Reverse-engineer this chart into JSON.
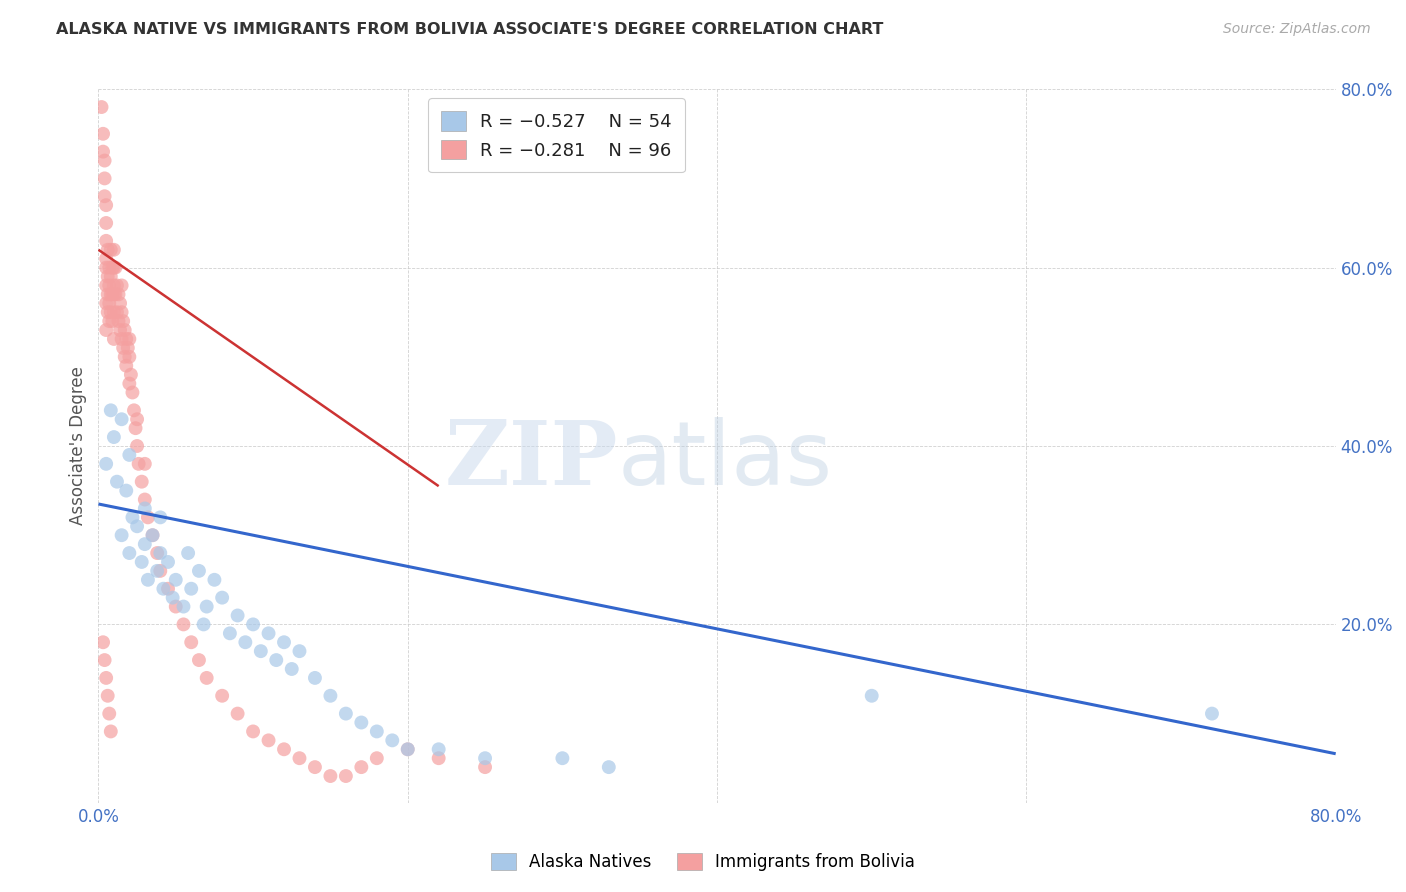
{
  "title": "ALASKA NATIVE VS IMMIGRANTS FROM BOLIVIA ASSOCIATE'S DEGREE CORRELATION CHART",
  "source": "Source: ZipAtlas.com",
  "ylabel": "Associate's Degree",
  "xlim": [
    0.0,
    0.8
  ],
  "ylim": [
    0.0,
    0.8
  ],
  "blue_color": "#a8c8e8",
  "pink_color": "#f4a0a0",
  "blue_line_color": "#3366cc",
  "pink_line_color": "#cc3333",
  "blue_line_x0": 0.0,
  "blue_line_y0": 0.335,
  "blue_line_x1": 0.8,
  "blue_line_y1": 0.055,
  "pink_line_x0": 0.0,
  "pink_line_y0": 0.62,
  "pink_line_x1": 0.22,
  "pink_line_y1": 0.355,
  "watermark_zip": "ZIP",
  "watermark_atlas": "atlas",
  "background_color": "#ffffff",
  "blue_scatter_x": [
    0.005,
    0.008,
    0.01,
    0.012,
    0.015,
    0.015,
    0.018,
    0.02,
    0.02,
    0.022,
    0.025,
    0.028,
    0.03,
    0.03,
    0.032,
    0.035,
    0.038,
    0.04,
    0.04,
    0.042,
    0.045,
    0.048,
    0.05,
    0.055,
    0.058,
    0.06,
    0.065,
    0.068,
    0.07,
    0.075,
    0.08,
    0.085,
    0.09,
    0.095,
    0.1,
    0.105,
    0.11,
    0.115,
    0.12,
    0.125,
    0.13,
    0.14,
    0.15,
    0.16,
    0.17,
    0.18,
    0.19,
    0.2,
    0.22,
    0.25,
    0.3,
    0.33,
    0.5,
    0.72
  ],
  "blue_scatter_y": [
    0.38,
    0.44,
    0.41,
    0.36,
    0.43,
    0.3,
    0.35,
    0.39,
    0.28,
    0.32,
    0.31,
    0.27,
    0.29,
    0.33,
    0.25,
    0.3,
    0.26,
    0.28,
    0.32,
    0.24,
    0.27,
    0.23,
    0.25,
    0.22,
    0.28,
    0.24,
    0.26,
    0.2,
    0.22,
    0.25,
    0.23,
    0.19,
    0.21,
    0.18,
    0.2,
    0.17,
    0.19,
    0.16,
    0.18,
    0.15,
    0.17,
    0.14,
    0.12,
    0.1,
    0.09,
    0.08,
    0.07,
    0.06,
    0.06,
    0.05,
    0.05,
    0.04,
    0.12,
    0.1
  ],
  "pink_scatter_x": [
    0.002,
    0.003,
    0.003,
    0.004,
    0.004,
    0.004,
    0.005,
    0.005,
    0.005,
    0.005,
    0.005,
    0.005,
    0.005,
    0.005,
    0.006,
    0.006,
    0.006,
    0.006,
    0.007,
    0.007,
    0.007,
    0.007,
    0.008,
    0.008,
    0.008,
    0.008,
    0.009,
    0.009,
    0.009,
    0.01,
    0.01,
    0.01,
    0.01,
    0.01,
    0.01,
    0.011,
    0.011,
    0.012,
    0.012,
    0.013,
    0.013,
    0.014,
    0.014,
    0.015,
    0.015,
    0.015,
    0.016,
    0.016,
    0.017,
    0.017,
    0.018,
    0.018,
    0.019,
    0.02,
    0.02,
    0.02,
    0.021,
    0.022,
    0.023,
    0.024,
    0.025,
    0.025,
    0.026,
    0.028,
    0.03,
    0.03,
    0.032,
    0.035,
    0.038,
    0.04,
    0.045,
    0.05,
    0.055,
    0.06,
    0.065,
    0.07,
    0.08,
    0.09,
    0.1,
    0.11,
    0.12,
    0.13,
    0.14,
    0.15,
    0.16,
    0.17,
    0.18,
    0.2,
    0.22,
    0.25,
    0.003,
    0.004,
    0.005,
    0.006,
    0.007,
    0.008
  ],
  "pink_scatter_y": [
    0.78,
    0.75,
    0.73,
    0.7,
    0.68,
    0.72,
    0.65,
    0.67,
    0.63,
    0.61,
    0.58,
    0.6,
    0.56,
    0.53,
    0.62,
    0.59,
    0.55,
    0.57,
    0.6,
    0.58,
    0.54,
    0.56,
    0.62,
    0.59,
    0.55,
    0.57,
    0.6,
    0.57,
    0.54,
    0.62,
    0.6,
    0.57,
    0.55,
    0.52,
    0.58,
    0.6,
    0.57,
    0.58,
    0.55,
    0.57,
    0.54,
    0.56,
    0.53,
    0.55,
    0.52,
    0.58,
    0.54,
    0.51,
    0.53,
    0.5,
    0.52,
    0.49,
    0.51,
    0.5,
    0.47,
    0.52,
    0.48,
    0.46,
    0.44,
    0.42,
    0.4,
    0.43,
    0.38,
    0.36,
    0.34,
    0.38,
    0.32,
    0.3,
    0.28,
    0.26,
    0.24,
    0.22,
    0.2,
    0.18,
    0.16,
    0.14,
    0.12,
    0.1,
    0.08,
    0.07,
    0.06,
    0.05,
    0.04,
    0.03,
    0.03,
    0.04,
    0.05,
    0.06,
    0.05,
    0.04,
    0.18,
    0.16,
    0.14,
    0.12,
    0.1,
    0.08
  ]
}
